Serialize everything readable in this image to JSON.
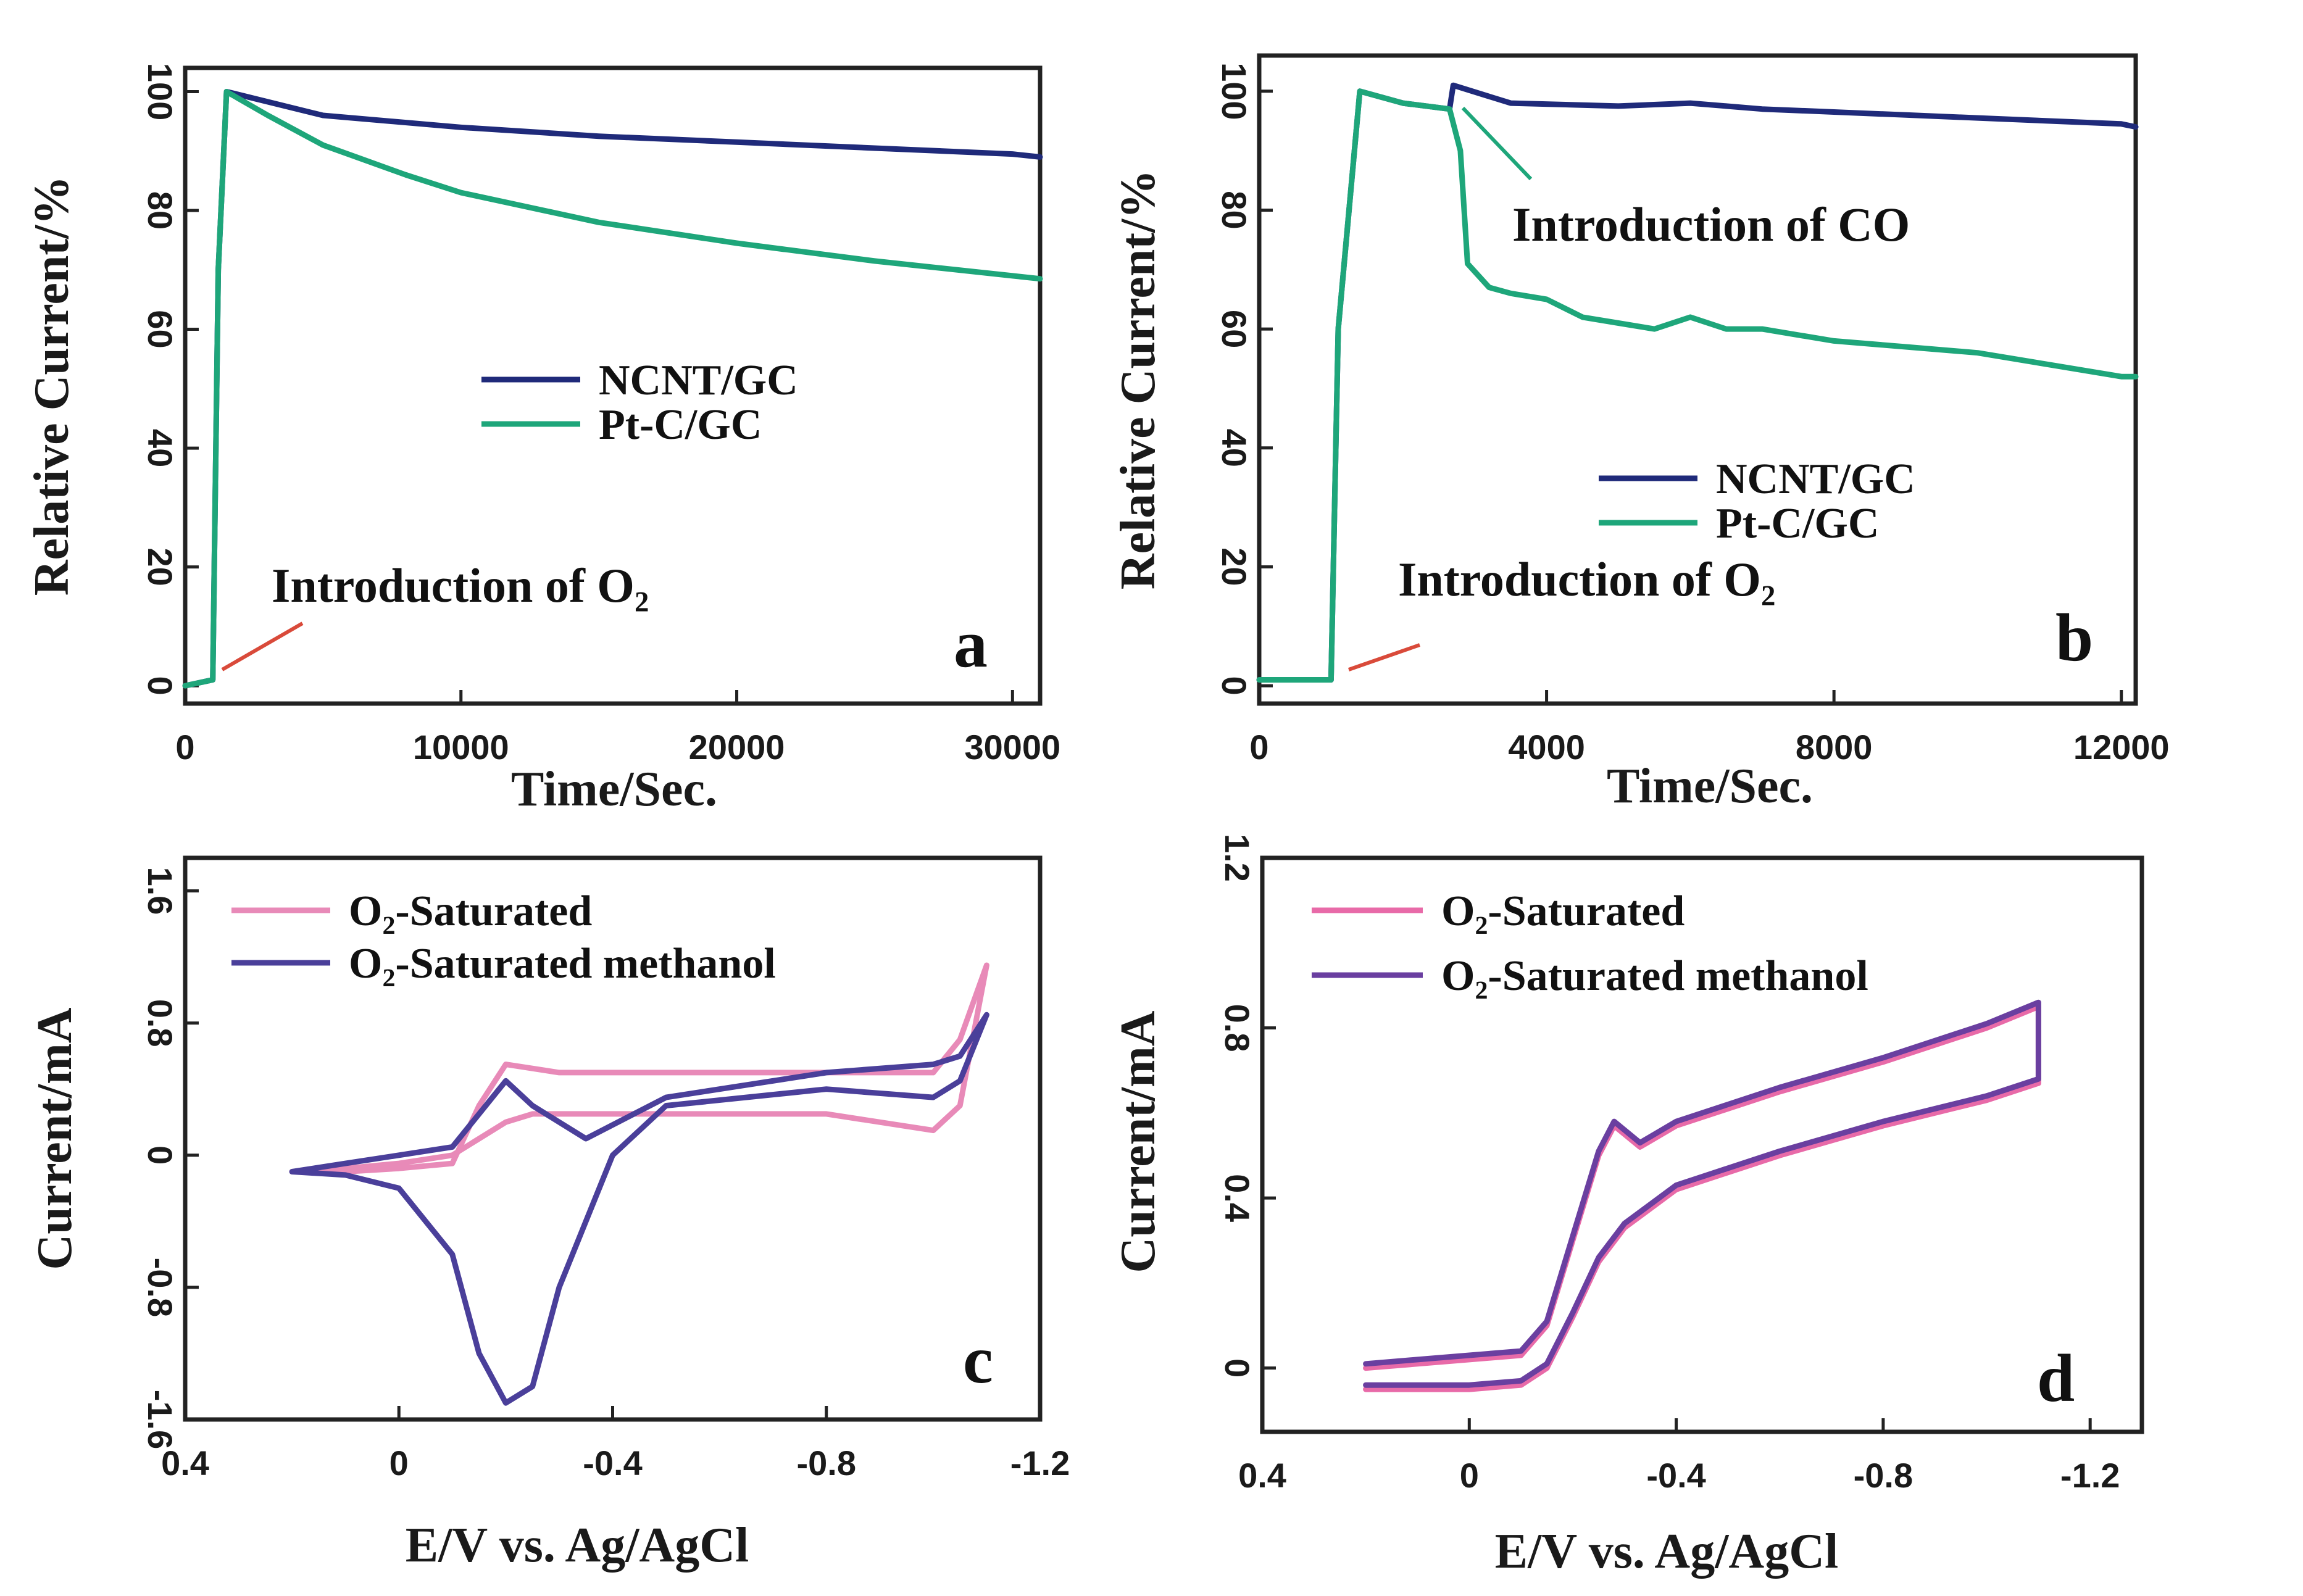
{
  "chart_data": [
    {
      "type": "line",
      "panel_label": "a",
      "xlabel": "Time/Sec.",
      "ylabel": "Relative Current/%",
      "xlim": [
        0,
        31000
      ],
      "ylim": [
        -3,
        104
      ],
      "xticks": [
        0,
        10000,
        20000,
        30000
      ],
      "xtick_labels": [
        "0",
        "10000",
        "20000",
        "30000"
      ],
      "yticks": [
        0,
        20,
        40,
        60,
        80,
        100
      ],
      "ytick_labels": [
        "0",
        "20",
        "40",
        "60",
        "80",
        "100"
      ],
      "legend": [
        "NCNT/GC",
        "Pt-C/GC"
      ],
      "annotations": [
        {
          "text": "Introduction of O2",
          "x": 1200,
          "y": 2
        }
      ],
      "series": [
        {
          "name": "NCNT/GC",
          "color": "#1f2a7a",
          "x": [
            0,
            1000,
            1200,
            1500,
            5000,
            10000,
            15000,
            20000,
            25000,
            30000,
            31000
          ],
          "y": [
            0,
            1,
            70,
            100,
            96,
            94,
            92.5,
            91.5,
            90.5,
            89.5,
            89
          ]
        },
        {
          "name": "Pt-C/GC",
          "color": "#1ea67a",
          "x": [
            0,
            1000,
            1200,
            1500,
            3000,
            5000,
            8000,
            10000,
            15000,
            20000,
            25000,
            30000,
            31000
          ],
          "y": [
            0,
            1,
            70,
            100,
            96,
            91,
            86,
            83,
            78,
            74.5,
            71.5,
            69,
            68.5
          ]
        }
      ]
    },
    {
      "type": "line",
      "panel_label": "b",
      "xlabel": "Time/Sec.",
      "ylabel": "Relative Current/%",
      "xlim": [
        0,
        12200
      ],
      "ylim": [
        -3,
        106
      ],
      "xticks": [
        0,
        4000,
        8000,
        12000
      ],
      "xtick_labels": [
        "0",
        "4000",
        "8000",
        "12000"
      ],
      "yticks": [
        0,
        20,
        40,
        60,
        80,
        100
      ],
      "ytick_labels": [
        "0",
        "20",
        "40",
        "60",
        "80",
        "100"
      ],
      "legend": [
        "NCNT/GC",
        "Pt-C/GC"
      ],
      "annotations": [
        {
          "text": "Introduction of CO",
          "x": 2700,
          "y": 98
        },
        {
          "text": "Introduction of O2",
          "x": 1000,
          "y": 1
        }
      ],
      "series": [
        {
          "name": "NCNT/GC",
          "color": "#1f2a7a",
          "x": [
            0,
            1000,
            1100,
            1400,
            2000,
            2650,
            2700,
            3500,
            5000,
            6000,
            7000,
            8000,
            9000,
            10000,
            11000,
            12000,
            12200
          ],
          "y": [
            1,
            1,
            60,
            100,
            98,
            97,
            101,
            98,
            97.5,
            98,
            97,
            96.5,
            96,
            95.5,
            95,
            94.5,
            94
          ]
        },
        {
          "name": "Pt-C/GC",
          "color": "#1ea67a",
          "x": [
            0,
            1000,
            1100,
            1400,
            2000,
            2650,
            2800,
            2900,
            3200,
            3500,
            4000,
            4500,
            5000,
            5500,
            6000,
            6500,
            7000,
            8000,
            9000,
            10000,
            11000,
            12000,
            12200
          ],
          "y": [
            1,
            1,
            60,
            100,
            98,
            97,
            90,
            71,
            67,
            66,
            65,
            62,
            61,
            60,
            62,
            60,
            60,
            58,
            57,
            56,
            54,
            52,
            52
          ]
        }
      ]
    },
    {
      "type": "line",
      "panel_label": "c",
      "xlabel": "E/V vs. Ag/AgCl",
      "ylabel": "Current/mA",
      "xlim": [
        0.4,
        -1.2
      ],
      "ylim": [
        -1.6,
        1.8
      ],
      "xticks": [
        0.4,
        0,
        -0.4,
        -0.8,
        -1.2
      ],
      "xtick_labels": [
        "0.4",
        "0",
        "-0.4",
        "-0.8",
        "-1.2"
      ],
      "yticks": [
        -1.6,
        -0.8,
        0,
        0.8,
        1.6
      ],
      "ytick_labels": [
        "-1.6",
        "-0.8",
        "0",
        "0.8",
        "1.6"
      ],
      "legend": [
        "O2-Saturated",
        "O2-Saturated methanol"
      ],
      "series": [
        {
          "name": "O2-Saturated",
          "color": "#e88ab8",
          "x": [
            0.2,
            0.1,
            0,
            -0.1,
            -0.15,
            -0.2,
            -0.3,
            -0.5,
            -0.8,
            -1.0,
            -1.05,
            -1.1,
            -1.05,
            -1.0,
            -0.8,
            -0.5,
            -0.3,
            -0.25,
            -0.2,
            -0.15,
            -0.1,
            0,
            0.1,
            0.2
          ],
          "y": [
            -0.1,
            -0.1,
            -0.08,
            -0.05,
            0.3,
            0.55,
            0.5,
            0.5,
            0.5,
            0.5,
            0.7,
            1.15,
            0.3,
            0.15,
            0.25,
            0.25,
            0.25,
            0.25,
            0.2,
            0.1,
            0.0,
            -0.05,
            -0.08,
            -0.1
          ]
        },
        {
          "name": "O2-Saturated methanol",
          "color": "#4a3f9a",
          "x": [
            0.2,
            0.1,
            0,
            -0.1,
            -0.15,
            -0.2,
            -0.25,
            -0.35,
            -0.5,
            -0.8,
            -1.0,
            -1.05,
            -1.1,
            -1.05,
            -1.0,
            -0.8,
            -0.5,
            -0.4,
            -0.3,
            -0.25,
            -0.2,
            -0.15,
            -0.1,
            0,
            0.1,
            0.2
          ],
          "y": [
            -0.1,
            -0.05,
            0.0,
            0.05,
            0.25,
            0.45,
            0.3,
            0.1,
            0.35,
            0.5,
            0.55,
            0.6,
            0.85,
            0.45,
            0.35,
            0.4,
            0.3,
            0.0,
            -0.8,
            -1.4,
            -1.5,
            -1.2,
            -0.6,
            -0.2,
            -0.12,
            -0.1
          ]
        }
      ]
    },
    {
      "type": "line",
      "panel_label": "d",
      "xlabel": "E/V vs. Ag/AgCl",
      "ylabel": "Current/mA",
      "xlim": [
        0.4,
        -1.3
      ],
      "ylim": [
        -0.15,
        1.2
      ],
      "xticks": [
        0.4,
        0,
        -0.4,
        -0.8,
        -1.2
      ],
      "xtick_labels": [
        "0.4",
        "0",
        "-0.4",
        "-0.8",
        "-1.2"
      ],
      "yticks": [
        0,
        0.4,
        0.8,
        1.2
      ],
      "ytick_labels": [
        "0",
        "0.4",
        "0.8",
        "1.2"
      ],
      "legend": [
        "O2-Saturated",
        "O2-Saturated methanol"
      ],
      "series": [
        {
          "name": "O2-Saturated",
          "color": "#e86aa8",
          "x": [
            0.2,
            0.1,
            0,
            -0.1,
            -0.15,
            -0.2,
            -0.25,
            -0.3,
            -0.4,
            -0.6,
            -0.8,
            -1.0,
            -1.1,
            -1.1,
            -1.0,
            -0.8,
            -0.6,
            -0.4,
            -0.33,
            -0.28,
            -0.25,
            -0.2,
            -0.15,
            -0.1,
            0,
            0.1,
            0.2
          ],
          "y": [
            -0.05,
            -0.05,
            -0.05,
            -0.04,
            0.0,
            0.12,
            0.25,
            0.33,
            0.42,
            0.5,
            0.57,
            0.63,
            0.67,
            0.85,
            0.8,
            0.72,
            0.65,
            0.57,
            0.52,
            0.57,
            0.5,
            0.3,
            0.1,
            0.03,
            0.02,
            0.01,
            0.0
          ]
        },
        {
          "name": "O2-Saturated methanol",
          "color": "#6a3fa0",
          "x": [
            0.2,
            0.1,
            0,
            -0.1,
            -0.15,
            -0.2,
            -0.25,
            -0.3,
            -0.4,
            -0.6,
            -0.8,
            -1.0,
            -1.1,
            -1.1,
            -1.0,
            -0.8,
            -0.6,
            -0.4,
            -0.33,
            -0.28,
            -0.25,
            -0.2,
            -0.15,
            -0.1,
            0,
            0.1,
            0.2
          ],
          "y": [
            -0.04,
            -0.04,
            -0.04,
            -0.03,
            0.01,
            0.13,
            0.26,
            0.34,
            0.43,
            0.51,
            0.58,
            0.64,
            0.68,
            0.86,
            0.81,
            0.73,
            0.66,
            0.58,
            0.53,
            0.58,
            0.51,
            0.31,
            0.11,
            0.04,
            0.03,
            0.02,
            0.01
          ]
        }
      ]
    }
  ]
}
